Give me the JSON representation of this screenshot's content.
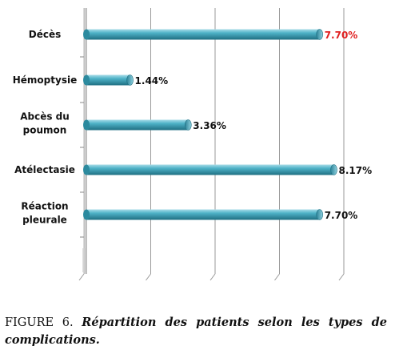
{
  "chart_data": {
    "type": "bar",
    "orientation": "horizontal",
    "categories": [
      [
        "Décès"
      ],
      [
        "Hémoptysie"
      ],
      [
        "Abcès du",
        "poumon"
      ],
      [
        "Atélectasie"
      ],
      [
        "Réaction",
        "pleurale"
      ]
    ],
    "values": [
      7.7,
      1.44,
      3.36,
      8.17,
      7.7
    ],
    "data_labels": [
      "7.70%",
      "1.44%",
      "3.36%",
      "8.17%",
      "7.70%"
    ],
    "bar_color": "#3a9eb3",
    "highlight_label_color": "#e02020",
    "xlim": [
      0,
      8.5
    ],
    "grid": true
  },
  "caption": {
    "figure": "FIGURE 6.",
    "text": "Répartition des patients selon les types de complications."
  }
}
